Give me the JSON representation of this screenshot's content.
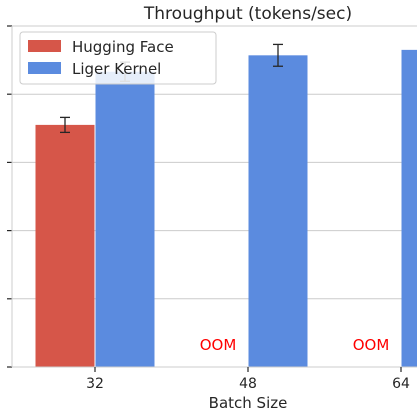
{
  "chart_data": {
    "type": "bar",
    "title": "Throughput (tokens/sec)",
    "xlabel": "Batch Size",
    "ylabel": "",
    "categories": [
      "32",
      "48",
      "64"
    ],
    "ylim": [
      0,
      5
    ],
    "y_ticks": [
      0,
      1,
      2,
      3,
      4,
      5
    ],
    "grid": true,
    "legend_position": "top-left",
    "series": [
      {
        "name": "Hugging Face",
        "color": "#D65649",
        "values": [
          3.55,
          null,
          null
        ],
        "errors": [
          0.11,
          null,
          null
        ]
      },
      {
        "name": "Liger Kernel",
        "color": "#5B8BDF",
        "values": [
          4.33,
          4.57,
          4.65
        ],
        "errors": [
          0.14,
          0.16,
          null
        ]
      }
    ],
    "annotations": [
      {
        "category": "48",
        "series": "Hugging Face",
        "text": "OOM",
        "color": "#ff0000"
      },
      {
        "category": "64",
        "series": "Hugging Face",
        "text": "OOM",
        "color": "#ff0000"
      }
    ]
  }
}
